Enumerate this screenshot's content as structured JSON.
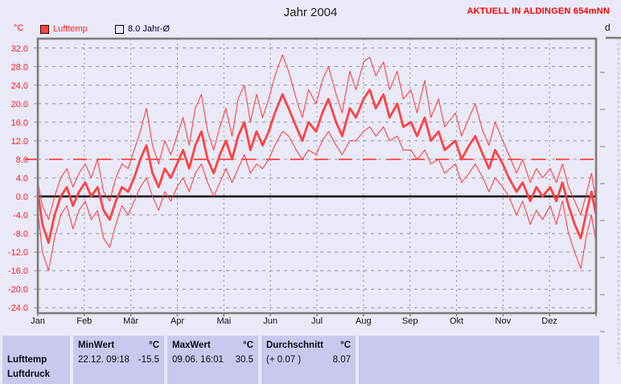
{
  "header": {
    "title": "Jahr 2004",
    "station": "AKTUELL IN ALDINGEN 654mNN",
    "side_axis_label": "d"
  },
  "legend": {
    "unit": "°C",
    "lufttemp_label": "Lufttemp",
    "avg_label": "8.0 Jahr-Ø"
  },
  "colors": {
    "series_red": "#ff4242",
    "axis_label_red": "#ff1a1a",
    "station_red": "#ff0000",
    "grid_gray": "#979797",
    "border_gray": "#7b7b7b",
    "zero_line_black": "#000000",
    "cell_bg": "#c9c9ef",
    "page_bg": "#e9e9f8",
    "legend_text_navy": "#00003a"
  },
  "chart_data": {
    "type": "line",
    "title": "Jahr 2004",
    "ylabel": "°C",
    "ylim": [
      -25,
      34
    ],
    "x_range_days": [
      1,
      366
    ],
    "grid": true,
    "legend_position": "top-left",
    "months": [
      "Jan",
      "Feb",
      "Mär",
      "Apr",
      "Mai",
      "Jun",
      "Jul",
      "Aug",
      "Sep",
      "Okt",
      "Nov",
      "Dez"
    ],
    "yticks": {
      "values": [
        32,
        28,
        24,
        20,
        16,
        12,
        8,
        4,
        0,
        -4,
        -8,
        -12,
        -16,
        -20,
        -24
      ],
      "labels": [
        "32.0",
        "28.0",
        "24.0",
        "20.0",
        "16.0",
        "12.0",
        "8.0",
        "4.0",
        "0.0",
        "-4.0",
        "-8.0",
        "-12.0",
        "-16.0",
        "-20.0",
        "-24.0"
      ]
    },
    "avg_line": {
      "value": 8.0,
      "label": "8.0 Jahr-Ø",
      "style": "long-dash-red"
    },
    "zero_line": 0.0,
    "x_days": [
      1,
      4,
      8,
      12,
      16,
      20,
      24,
      28,
      32,
      36,
      40,
      44,
      48,
      52,
      56,
      60,
      64,
      68,
      72,
      76,
      80,
      84,
      88,
      92,
      96,
      100,
      104,
      108,
      112,
      116,
      120,
      124,
      128,
      132,
      136,
      140,
      144,
      148,
      152,
      156,
      161,
      165,
      170,
      174,
      178,
      183,
      187,
      191,
      196,
      200,
      205,
      209,
      214,
      218,
      222,
      227,
      231,
      236,
      240,
      245,
      249,
      254,
      258,
      263,
      267,
      274,
      278,
      283,
      287,
      292,
      296,
      300,
      305,
      309,
      314,
      318,
      323,
      327,
      331,
      336,
      340,
      344,
      348,
      352,
      356,
      360,
      363,
      366
    ],
    "series": [
      {
        "name": "Lufttemp Tagesmax",
        "role": "max",
        "line": "thin",
        "values": [
          3,
          -2,
          -5,
          0,
          4,
          6,
          2,
          5,
          7,
          4,
          8,
          1,
          -1,
          4,
          7,
          6,
          10,
          14,
          19,
          11,
          7,
          12,
          9,
          13,
          17,
          11,
          19,
          22,
          14,
          10,
          15,
          19,
          13,
          21,
          24,
          16,
          22,
          17,
          21,
          26,
          30.5,
          27,
          21,
          17,
          23,
          20,
          25,
          28,
          22,
          18,
          27,
          23,
          29,
          30,
          26,
          29,
          23,
          27,
          21,
          23,
          18,
          25,
          17,
          21,
          15,
          18,
          13,
          17,
          20,
          14,
          11,
          16,
          12,
          9,
          5,
          8,
          3,
          6,
          4,
          6,
          3,
          7,
          2,
          -1,
          -4,
          1,
          5,
          -1
        ]
      },
      {
        "name": "Lufttemp Tagesmittel",
        "role": "mean",
        "line": "thick",
        "values": [
          1,
          -6,
          -10,
          -4,
          0,
          2,
          -2,
          1,
          3,
          0,
          2,
          -3,
          -5,
          -1,
          2,
          1,
          4,
          8,
          11,
          5,
          2,
          6,
          4,
          7,
          10,
          6,
          11,
          14,
          8,
          5,
          9,
          12,
          8,
          13,
          16,
          10,
          14,
          11,
          14,
          18,
          22,
          19,
          15,
          12,
          16,
          14,
          18,
          21,
          16,
          13,
          19,
          17,
          21,
          23,
          19,
          22,
          17,
          20,
          15,
          16,
          13,
          17,
          12,
          14,
          10,
          12,
          8,
          11,
          13,
          9,
          6,
          10,
          7,
          4,
          1,
          3,
          -1,
          2,
          0,
          2,
          -1,
          3,
          -2,
          -6,
          -9,
          -3,
          1,
          -4
        ]
      },
      {
        "name": "Lufttemp Tagesmin",
        "role": "min",
        "line": "thin",
        "values": [
          -3,
          -12,
          -16,
          -9,
          -4,
          -2,
          -7,
          -3,
          -1,
          -5,
          -3,
          -9,
          -11,
          -6,
          -2,
          -4,
          -1,
          2,
          4,
          0,
          -3,
          1,
          -1,
          2,
          4,
          1,
          5,
          7,
          3,
          0,
          3,
          6,
          3,
          6,
          9,
          5,
          7,
          6,
          8,
          11,
          14,
          13,
          10,
          8,
          10,
          9,
          12,
          14,
          11,
          9,
          12,
          12,
          14,
          15,
          13,
          15,
          12,
          13,
          10,
          10,
          8,
          10,
          7,
          8,
          5,
          7,
          3,
          5,
          7,
          4,
          1,
          4,
          2,
          0,
          -4,
          -1,
          -6,
          -3,
          -5,
          -2,
          -6,
          -1,
          -8,
          -12,
          -15.5,
          -8,
          -4,
          -10
        ]
      }
    ]
  },
  "table": {
    "sensor": "Lufttemp",
    "sensor_next_partial": "Luftdruck",
    "min": {
      "label": "MinWert",
      "unit": "°C",
      "time": "22.12. 09:18",
      "value": "-15.5"
    },
    "max": {
      "label": "MaxWert",
      "unit": "°C",
      "time": "09.06. 16:01",
      "value": "30.5"
    },
    "avg": {
      "label": "Durchschnitt",
      "unit": "°C",
      "delta": "(+ 0.07 )",
      "value": "8.07"
    }
  }
}
